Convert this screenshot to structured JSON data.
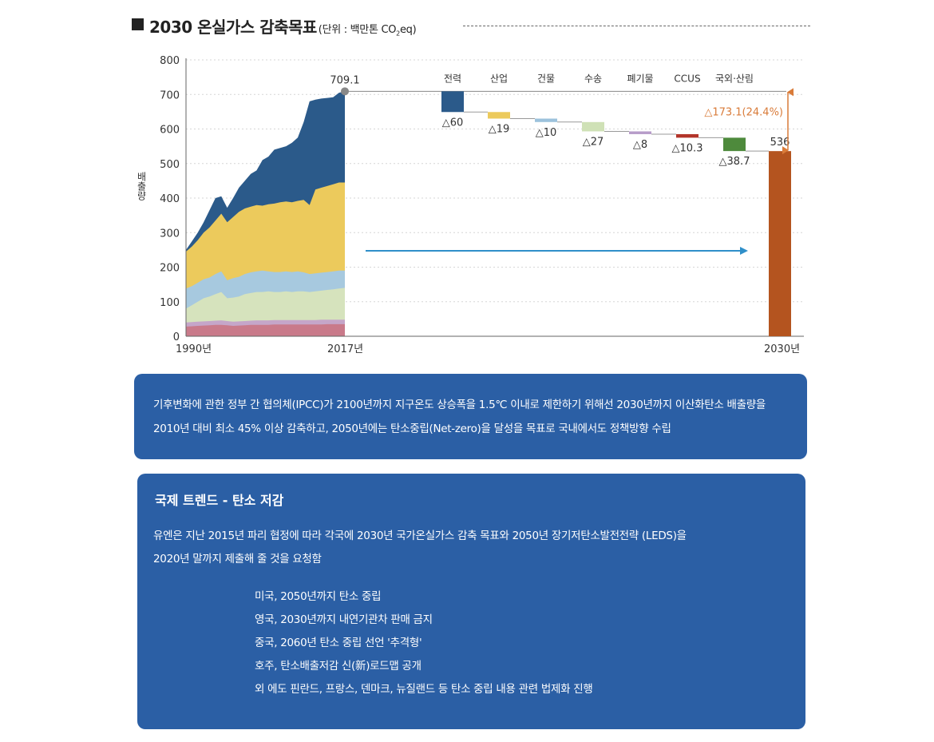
{
  "header": {
    "title": "2030 온실가스 감축목표",
    "unit_prefix": "(단위 : 백만톤 CO",
    "unit_sub": "2",
    "unit_suffix": "eq)"
  },
  "chart_data": {
    "type": "area+waterfall",
    "title": "2030 온실가스 감축목표",
    "ylabel": "배출량",
    "ylim": [
      0,
      800
    ],
    "yticks": [
      "0",
      "100",
      "200",
      "300",
      "400",
      "500",
      "600",
      "700",
      "800"
    ],
    "x_labels": [
      "1990년",
      "2017년",
      "2030년"
    ],
    "start_value": 709.1,
    "start_label": "709.1",
    "reductions": [
      {
        "name": "전력",
        "value": 60,
        "label": "△60",
        "color": "#2b5a8a"
      },
      {
        "name": "산업",
        "value": 19,
        "label": "△19",
        "color": "#ecca5c"
      },
      {
        "name": "건물",
        "value": 10,
        "label": "△10",
        "color": "#9cc2dc"
      },
      {
        "name": "수송",
        "value": 27,
        "label": "△27",
        "color": "#cfe1b6"
      },
      {
        "name": "폐기물",
        "value": 8,
        "label": "△8",
        "color": "#b79cc9"
      },
      {
        "name": "CCUS",
        "value": 10.3,
        "label": "△10.3",
        "color": "#b3352a"
      },
      {
        "name": "국외·산림",
        "value": 38.7,
        "label": "△38.7",
        "color": "#4e8a3c"
      }
    ],
    "target_value": 536,
    "target_label": "536",
    "target_color": "#b4541f",
    "total_reduction_label": "△173.1(24.4%)",
    "area_colors": {
      "power": "#2b5a8a",
      "industry": "#ecca5c",
      "building": "#a7c9df",
      "transport": "#d6e3bd",
      "waste": "#c5a6c9",
      "other": "#c97a8a"
    }
  },
  "info_box": {
    "line1": "기후변화에 관한 정부 간 협의체(IPCC)가 2100년까지 지구온도 상승폭을 1.5℃ 이내로 제한하기 위해선 2030년까지 이산화탄소 배출량을",
    "line2": "2010년 대비 최소 45% 이상 감축하고, 2050년에는 탄소중립(Net-zero)을 달성을 목표로 국내에서도 정책방향 수립"
  },
  "trend_box": {
    "heading": "국제 트렌드  -  탄소 저감",
    "body1": "유엔은 지난 2015년 파리 협정에 따라 각국에 2030년 국가온실가스 감축 목표와 2050년 장기저탄소발전전략 (LEDS)을",
    "body2": "2020년 말까지 제출해 줄 것을 요청함",
    "items": [
      "미국, 2050년까지 탄소 중립",
      "영국, 2030년까지 내연기관차 판매 금지",
      "중국, 2060년 탄소 중립 선언 '추격형'",
      "호주, 탄소배출저감 신(新)로드맵 공개",
      "외 에도 핀란드, 프랑스, 덴마크, 뉴질랜드 등 탄소 중립 내용 관련 법제화 진행"
    ]
  }
}
